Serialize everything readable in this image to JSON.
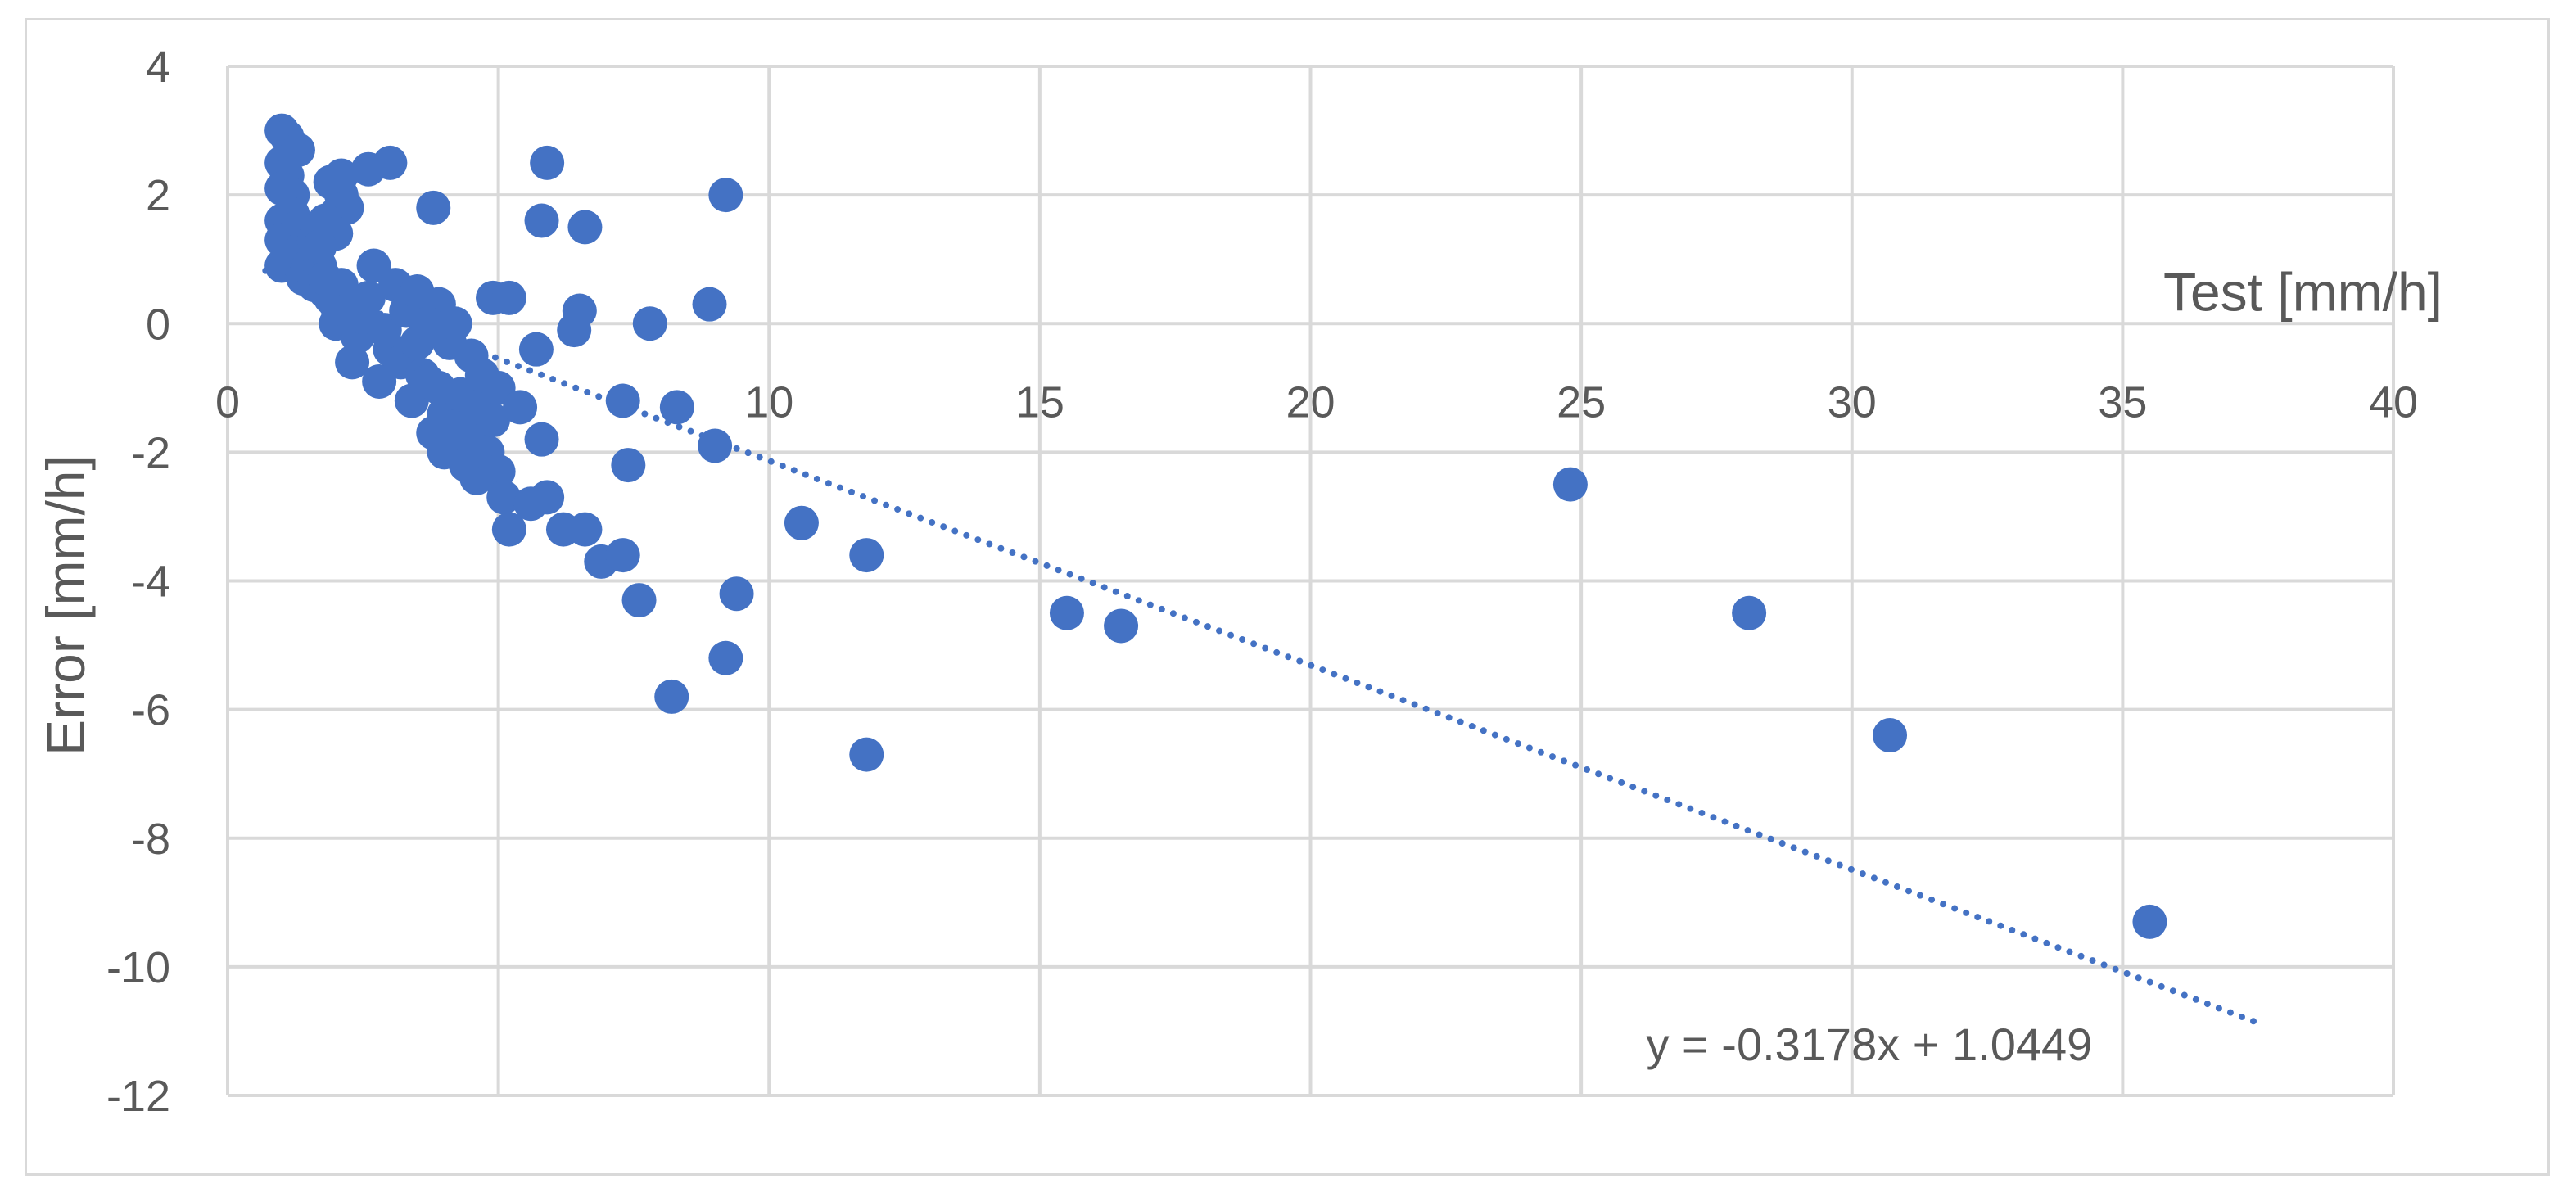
{
  "chart_data": {
    "type": "scatter",
    "xlabel": "Test [mm/h]",
    "ylabel": "Error [mm/h]",
    "xlim": [
      0,
      40
    ],
    "ylim": [
      -12,
      4
    ],
    "x_ticks": [
      "0",
      "5",
      "10",
      "15",
      "20",
      "25",
      "30",
      "35",
      "40"
    ],
    "y_ticks": [
      "4",
      "2",
      "0",
      "-2",
      "-4",
      "-6",
      "-8",
      "-10",
      "-12"
    ],
    "grid": true,
    "legend": "none",
    "marker_color": "#4472c4",
    "trendline": {
      "label": "y = -0.3178x + 1.0449",
      "slope": -0.3178,
      "intercept": 1.0449,
      "x_range": [
        0.7,
        37.5
      ],
      "style": "dotted",
      "color": "#4472c4"
    },
    "series": [
      {
        "points": [
          [
            1.0,
            3.0
          ],
          [
            1.1,
            2.9
          ],
          [
            1.3,
            2.7
          ],
          [
            1.0,
            2.5
          ],
          [
            1.1,
            2.3
          ],
          [
            1.0,
            2.1
          ],
          [
            1.2,
            2.0
          ],
          [
            1.0,
            1.6
          ],
          [
            1.2,
            1.7
          ],
          [
            1.1,
            1.4
          ],
          [
            1.0,
            1.3
          ],
          [
            1.3,
            1.5
          ],
          [
            1.4,
            1.2
          ],
          [
            1.0,
            0.9
          ],
          [
            1.2,
            1.0
          ],
          [
            1.5,
            1.1
          ],
          [
            1.6,
            1.3
          ],
          [
            1.5,
            0.9
          ],
          [
            1.4,
            0.7
          ],
          [
            1.7,
            0.9
          ],
          [
            1.6,
            0.6
          ],
          [
            1.8,
            0.5
          ],
          [
            1.9,
            0.4
          ],
          [
            1.8,
            0.7
          ],
          [
            2.0,
            0.3
          ],
          [
            2.1,
            0.6
          ],
          [
            2.0,
            0.0
          ],
          [
            2.2,
            0.2
          ],
          [
            1.9,
            2.2
          ],
          [
            2.1,
            2.0
          ],
          [
            2.0,
            1.7
          ],
          [
            2.2,
            1.8
          ],
          [
            1.8,
            1.6
          ],
          [
            2.0,
            1.4
          ],
          [
            1.7,
            1.2
          ],
          [
            2.1,
            2.3
          ],
          [
            2.6,
            2.4
          ],
          [
            3.0,
            2.5
          ],
          [
            2.3,
            -0.6
          ],
          [
            2.4,
            -0.2
          ],
          [
            2.5,
            0.1
          ],
          [
            2.6,
            0.4
          ],
          [
            2.7,
            0.9
          ],
          [
            2.8,
            -0.9
          ],
          [
            3.0,
            -0.4
          ],
          [
            2.9,
            -0.1
          ],
          [
            3.1,
            0.6
          ],
          [
            3.2,
            -0.6
          ],
          [
            3.3,
            0.2
          ],
          [
            3.5,
            0.5
          ],
          [
            3.4,
            -1.2
          ],
          [
            3.6,
            -0.8
          ],
          [
            3.5,
            -0.3
          ],
          [
            3.7,
            -0.9
          ],
          [
            3.8,
            1.8
          ],
          [
            3.9,
            0.3
          ],
          [
            3.7,
            0.0
          ],
          [
            3.8,
            -1.7
          ],
          [
            4.0,
            -1.4
          ],
          [
            3.9,
            -1.0
          ],
          [
            4.1,
            -0.3
          ],
          [
            4.2,
            0.0
          ],
          [
            4.0,
            -2.0
          ],
          [
            4.2,
            -1.6
          ],
          [
            4.3,
            -1.1
          ],
          [
            4.4,
            -2.2
          ],
          [
            4.5,
            -1.8
          ],
          [
            4.5,
            -0.5
          ],
          [
            4.6,
            -1.3
          ],
          [
            4.7,
            -0.8
          ],
          [
            4.6,
            -2.4
          ],
          [
            4.8,
            -2.0
          ],
          [
            4.9,
            -1.5
          ],
          [
            5.0,
            -2.3
          ],
          [
            5.0,
            -1.0
          ],
          [
            5.1,
            -2.7
          ],
          [
            4.9,
            0.4
          ],
          [
            5.2,
            0.4
          ],
          [
            5.2,
            -3.2
          ],
          [
            5.4,
            -1.3
          ],
          [
            5.6,
            -2.8
          ],
          [
            5.7,
            -0.4
          ],
          [
            5.8,
            -1.8
          ],
          [
            5.8,
            1.6
          ],
          [
            5.9,
            2.5
          ],
          [
            5.9,
            -2.7
          ],
          [
            6.2,
            -3.2
          ],
          [
            6.4,
            -0.1
          ],
          [
            6.5,
            0.2
          ],
          [
            6.6,
            1.5
          ],
          [
            6.6,
            -3.2
          ],
          [
            6.9,
            -3.7
          ],
          [
            7.3,
            -3.6
          ],
          [
            7.3,
            -1.2
          ],
          [
            7.4,
            -2.2
          ],
          [
            7.6,
            -4.3
          ],
          [
            7.8,
            -0.0
          ],
          [
            8.2,
            -5.8
          ],
          [
            8.3,
            -1.3
          ],
          [
            8.9,
            0.3
          ],
          [
            9.0,
            -1.9
          ],
          [
            9.2,
            2.0
          ],
          [
            9.2,
            -5.2
          ],
          [
            9.4,
            -4.2
          ],
          [
            10.6,
            -3.1
          ],
          [
            11.8,
            -3.6
          ],
          [
            11.8,
            -6.7
          ],
          [
            15.5,
            -4.5
          ],
          [
            16.5,
            -4.7
          ],
          [
            24.8,
            -2.5
          ],
          [
            28.1,
            -4.5
          ],
          [
            30.7,
            -6.4
          ],
          [
            35.5,
            -9.3
          ]
        ]
      }
    ]
  }
}
